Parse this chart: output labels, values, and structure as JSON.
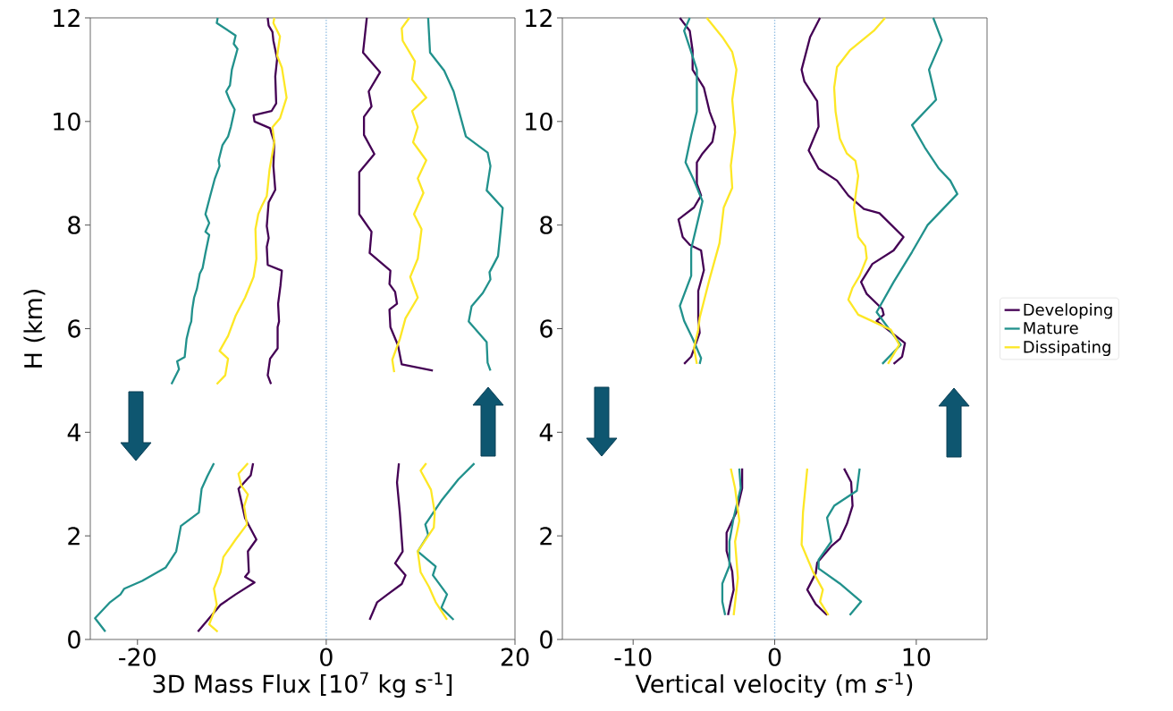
{
  "chart_data": [
    {
      "type": "line",
      "xlabel": "3D Mass Flux [10$^{7}$ kg s$^{-1}$]",
      "ylabel": "H (km)",
      "xlim": [
        -25,
        20
      ],
      "xticks": [
        -20,
        0,
        20
      ],
      "ylim": [
        0,
        12
      ],
      "yticks": [
        0,
        2,
        4,
        6,
        8,
        10,
        12
      ],
      "ref_lines": [
        {
          "axis": "x",
          "value": 0,
          "color": "#7fb2dd",
          "line_style": "dotted"
        }
      ],
      "marker": "none",
      "line_style": "solid",
      "series": [
        {
          "color": "#440154",
          "x": [
            -6.2,
            -6.1,
            -5.7,
            -5.6,
            -5.2,
            -5.4,
            -5.3,
            -5.8,
            -7.7,
            -7.6,
            -5.95,
            -5.8,
            -5.5,
            -5.6,
            -5.4,
            -6.1,
            -6.3,
            -6.1,
            -6.3,
            -6.2,
            -4.7,
            -4.85,
            -5.1,
            -5.0,
            -5.15,
            -5.15,
            -5.95,
            -6.2,
            -5.85,
            null,
            -7.75,
            -8.0,
            -9.3,
            -8.6,
            -7.4,
            -8.3,
            -8.2,
            -8.6,
            -7.6,
            -9.6,
            -11.2,
            -12.3,
            -13.6,
            null,
            4.3,
            3.9,
            5.7,
            4.5,
            4.8,
            4.0,
            4.0,
            5.1,
            3.5,
            3.5,
            4.8,
            4.6,
            6.8,
            6.7,
            7.3,
            7.5,
            6.7,
            6.8,
            7.6,
            8.0,
            11.3,
            null,
            7.7,
            7.5,
            7.8,
            8.1,
            7.3,
            8.4,
            8.0,
            6.5,
            5.4,
            4.6
          ],
          "values": [
            12,
            11.85,
            11.73,
            11.56,
            11.21,
            10.87,
            10.35,
            10.2,
            10.12,
            10.0,
            9.87,
            9.77,
            9.6,
            9.14,
            8.68,
            8.44,
            7.98,
            7.75,
            7.58,
            7.23,
            7.12,
            6.83,
            6.48,
            6.14,
            6.03,
            5.62,
            5.42,
            5.1,
            4.93,
            null,
            3.4,
            3.17,
            2.91,
            2.34,
            1.93,
            1.7,
            1.3,
            1.21,
            1.1,
            0.87,
            0.67,
            0.43,
            0.15,
            null,
            12,
            11.33,
            10.95,
            10.58,
            10.29,
            10.09,
            9.74,
            9.37,
            9.02,
            8.21,
            7.87,
            7.46,
            7.12,
            6.86,
            6.71,
            6.48,
            6.37,
            6.03,
            5.68,
            5.31,
            5.19,
            null,
            3.4,
            3.03,
            2.45,
            1.7,
            1.47,
            1.24,
            1.07,
            0.87,
            0.72,
            0.38
          ]
        },
        {
          "color": "#21918c",
          "x": [
            -11.5,
            -11.6,
            -9.6,
            -9.8,
            -9.4,
            -10.0,
            -10.2,
            -10.6,
            -10.2,
            -9.7,
            -10.1,
            -10.4,
            -11.0,
            -11.4,
            -11.3,
            -11.8,
            -12.3,
            -12.8,
            -12.4,
            -12.8,
            -12.4,
            -12.8,
            -13.1,
            -13.4,
            -13.7,
            -14.0,
            -14.2,
            -14.3,
            -14.5,
            -14.8,
            -15.0,
            -15.8,
            -15.6,
            -16.4,
            null,
            -11.9,
            -12.6,
            -13.2,
            -13.5,
            -15.4,
            -15.9,
            -17.0,
            -19.5,
            -21.4,
            -21.8,
            -22.9,
            -24.5,
            -23.4,
            null,
            10.8,
            11.0,
            12.5,
            13.5,
            14.8,
            17.1,
            17.4,
            17.0,
            18.7,
            18.5,
            18.2,
            17.3,
            17.4,
            16.6,
            15.4,
            15.1,
            17.0,
            17.1,
            17.4,
            null,
            15.7,
            14.0,
            12.2,
            10.5,
            10.8,
            9.7,
            11.6,
            11.3,
            12.8,
            12.2,
            13.5
          ],
          "values": [
            12,
            11.9,
            11.66,
            11.5,
            11.4,
            11.0,
            10.7,
            10.58,
            10.4,
            10.23,
            9.9,
            9.71,
            9.54,
            9.25,
            9.14,
            8.9,
            8.56,
            8.21,
            8.04,
            7.87,
            7.81,
            7.46,
            7.17,
            7.06,
            6.77,
            6.6,
            6.37,
            6.14,
            6.03,
            5.8,
            5.45,
            5.37,
            5.22,
            4.93,
            null,
            3.4,
            3.15,
            2.91,
            2.45,
            2.19,
            1.7,
            1.39,
            1.13,
            0.98,
            0.87,
            0.72,
            0.41,
            0.15,
            null,
            12,
            11.33,
            10.98,
            10.58,
            9.71,
            9.4,
            9.14,
            8.67,
            8.33,
            7.93,
            7.4,
            7.09,
            6.95,
            6.69,
            6.43,
            6.14,
            5.74,
            5.34,
            5.19,
            null,
            3.4,
            3.09,
            2.68,
            2.22,
            2.02,
            1.7,
            1.41,
            1.24,
            0.87,
            0.61,
            0.38
          ]
        },
        {
          "color": "#fde725",
          "x": [
            -5.5,
            -5.6,
            -4.9,
            -5.2,
            -4.7,
            -4.2,
            -4.9,
            -5.7,
            -5.5,
            -6.0,
            -6.3,
            -6.8,
            -7.2,
            -7.5,
            -7.4,
            -7.7,
            -8.6,
            -9.6,
            -10.4,
            -11.3,
            -10.4,
            -10.7,
            -11.6,
            null,
            -8.3,
            -9.3,
            -9.0,
            -8.3,
            -8.7,
            -8.4,
            -9.6,
            -10.9,
            -11.2,
            -11.9,
            -11.6,
            -12.4,
            -11.5,
            null,
            8.8,
            8.0,
            8.1,
            9.4,
            9.1,
            10.6,
            9.1,
            9.7,
            9.2,
            10.6,
            9.7,
            10.3,
            9.3,
            10.1,
            9.7,
            8.9,
            9.7,
            8.4,
            7.8,
            7.0,
            7.2,
            null,
            10.6,
            10.0,
            11.1,
            11.5,
            11.4,
            9.7,
            10.0,
            10.9,
            11.6,
            12.8
          ],
          "values": [
            12,
            11.9,
            11.64,
            11.27,
            11.04,
            10.46,
            10.06,
            9.89,
            9.6,
            9.08,
            8.56,
            8.38,
            8.21,
            7.92,
            7.35,
            7.0,
            6.6,
            6.25,
            5.86,
            5.57,
            5.42,
            5.1,
            4.93,
            null,
            3.4,
            3.2,
            2.97,
            2.8,
            2.57,
            2.22,
            1.93,
            1.59,
            1.3,
            0.98,
            0.67,
            0.29,
            0.15,
            null,
            12,
            11.8,
            11.56,
            11.16,
            10.81,
            10.46,
            10.2,
            9.89,
            9.6,
            9.25,
            8.9,
            8.62,
            8.21,
            7.92,
            7.35,
            7.0,
            6.6,
            6.2,
            5.8,
            5.4,
            5.16,
            null,
            3.4,
            3.26,
            2.89,
            2.45,
            2.16,
            1.7,
            1.3,
            1.01,
            0.72,
            0.38
          ]
        }
      ]
    },
    {
      "type": "line",
      "xlabel": "Vertical velocity (m *s*$^{-1}$)",
      "xlim": [
        -15,
        15
      ],
      "xticks": [
        -10,
        0,
        10
      ],
      "ylim": [
        0,
        12
      ],
      "yticks": [
        0,
        2,
        4,
        6,
        8,
        10,
        12
      ],
      "ref_lines": [
        {
          "axis": "x",
          "value": 0,
          "color": "#7fb2dd",
          "line_style": "dotted"
        }
      ],
      "marker": "none",
      "line_style": "solid",
      "legend": "right",
      "series": [
        {
          "name": "Developing",
          "color": "#440154",
          "x": [
            -6.7,
            -6.0,
            -5.8,
            -5.8,
            -5.0,
            -4.6,
            -4.2,
            -4.4,
            -5.1,
            -5.5,
            -5.5,
            -5.2,
            -5.7,
            -6.8,
            -6.5,
            -6.0,
            -5.2,
            -5.0,
            -5.4,
            -5.4,
            -5.3,
            -5.9,
            -6.4,
            null,
            -2.3,
            -2.3,
            -2.7,
            -3.0,
            -3.4,
            -3.4,
            -3.0,
            -2.9,
            -3.1,
            -3.3,
            null,
            3.2,
            2.5,
            1.9,
            2.1,
            3.0,
            3.1,
            2.4,
            3.1,
            4.4,
            5.2,
            6.3,
            7.4,
            9.1,
            8.4,
            6.9,
            6.1,
            6.5,
            7.6,
            7.7,
            7.2,
            9.2,
            9.0,
            8.4,
            null,
            4.9,
            5.4,
            5.5,
            5.1,
            4.6,
            4.0,
            3.0,
            2.9,
            2.3,
            2.9,
            3.7
          ],
          "values": [
            12,
            11.75,
            11.37,
            11.0,
            10.65,
            10.19,
            9.9,
            9.61,
            9.38,
            9.21,
            8.8,
            8.57,
            8.34,
            8.11,
            7.77,
            7.62,
            7.51,
            7.13,
            6.73,
            6.21,
            5.92,
            5.46,
            5.32,
            null,
            3.3,
            2.92,
            2.46,
            2.29,
            2.06,
            1.71,
            1.31,
            0.96,
            0.73,
            0.47,
            null,
            12,
            11.63,
            11.0,
            10.77,
            10.39,
            9.9,
            9.44,
            9.09,
            8.86,
            8.57,
            8.31,
            8.23,
            7.77,
            7.51,
            7.25,
            6.9,
            6.67,
            6.38,
            6.27,
            6.15,
            5.72,
            5.46,
            5.32,
            null,
            3.3,
            3.04,
            2.58,
            2.23,
            1.94,
            1.8,
            1.48,
            1.28,
            0.96,
            0.68,
            0.47
          ]
        },
        {
          "name": "Mature",
          "color": "#21918c",
          "x": [
            -6.0,
            -6.4,
            -5.9,
            -5.5,
            -5.5,
            -5.9,
            -6.3,
            -5.7,
            -5.1,
            -5.9,
            -5.9,
            -6.7,
            -6.4,
            -5.8,
            -5.2,
            -5.3,
            null,
            -2.5,
            -2.4,
            -2.9,
            -3.2,
            -3.2,
            -3.7,
            -3.7,
            -3.5,
            null,
            11.2,
            11.8,
            10.9,
            11.4,
            9.7,
            10.6,
            11.6,
            12.4,
            12.9,
            10.8,
            9.7,
            8.4,
            7.2,
            8.9,
            7.6,
            null,
            6.0,
            5.8,
            4.2,
            3.7,
            4.0,
            3.1,
            3.1,
            4.6,
            6.1,
            5.3
          ],
          "values": [
            12,
            11.75,
            11.34,
            11.0,
            10.19,
            9.73,
            9.21,
            8.86,
            8.46,
            7.54,
            7.02,
            6.44,
            6.15,
            5.81,
            5.43,
            5.32,
            null,
            3.3,
            2.92,
            2.35,
            1.89,
            1.42,
            1.08,
            0.73,
            0.47,
            null,
            12,
            11.57,
            11.0,
            10.42,
            9.93,
            9.5,
            9.09,
            8.86,
            8.6,
            8.0,
            7.48,
            6.9,
            6.32,
            5.69,
            5.32,
            null,
            3.3,
            2.87,
            2.58,
            2.35,
            1.89,
            1.54,
            1.37,
            1.08,
            0.73,
            0.47
          ]
        },
        {
          "name": "Dissipating",
          "color": "#fde725",
          "x": [
            -4.8,
            -3.7,
            -3.0,
            -2.7,
            -3.0,
            -2.8,
            -3.1,
            -3.0,
            -3.6,
            -3.9,
            -4.6,
            -5.3,
            -5.4,
            -5.7,
            -5.5,
            null,
            -3.1,
            -2.8,
            -2.5,
            -2.8,
            -2.6,
            -2.9,
            null,
            7.8,
            7.0,
            5.3,
            4.4,
            4.2,
            4.3,
            4.6,
            5.1,
            5.7,
            5.9,
            5.6,
            5.9,
            6.4,
            6.5,
            6.0,
            5.5,
            5.2,
            5.9,
            8.2,
            8.8,
            8.0,
            null,
            2.3,
            2.0,
            1.9,
            2.7,
            3.4,
            3.2,
            3.8
          ],
          "values": [
            12,
            11.63,
            11.34,
            11.0,
            10.42,
            9.79,
            9.15,
            8.72,
            8.34,
            7.65,
            6.96,
            6.21,
            5.98,
            5.63,
            5.32,
            null,
            3.3,
            2.92,
            2.29,
            1.89,
            1.19,
            0.47,
            null,
            12,
            11.75,
            11.37,
            11.05,
            10.65,
            10.19,
            9.67,
            9.38,
            9.24,
            8.95,
            8.34,
            7.77,
            7.59,
            7.36,
            7.02,
            6.79,
            6.56,
            6.27,
            5.98,
            5.69,
            5.32,
            null,
            3.3,
            2.46,
            1.83,
            1.31,
            0.96,
            0.73,
            0.47
          ]
        }
      ]
    }
  ]
}
